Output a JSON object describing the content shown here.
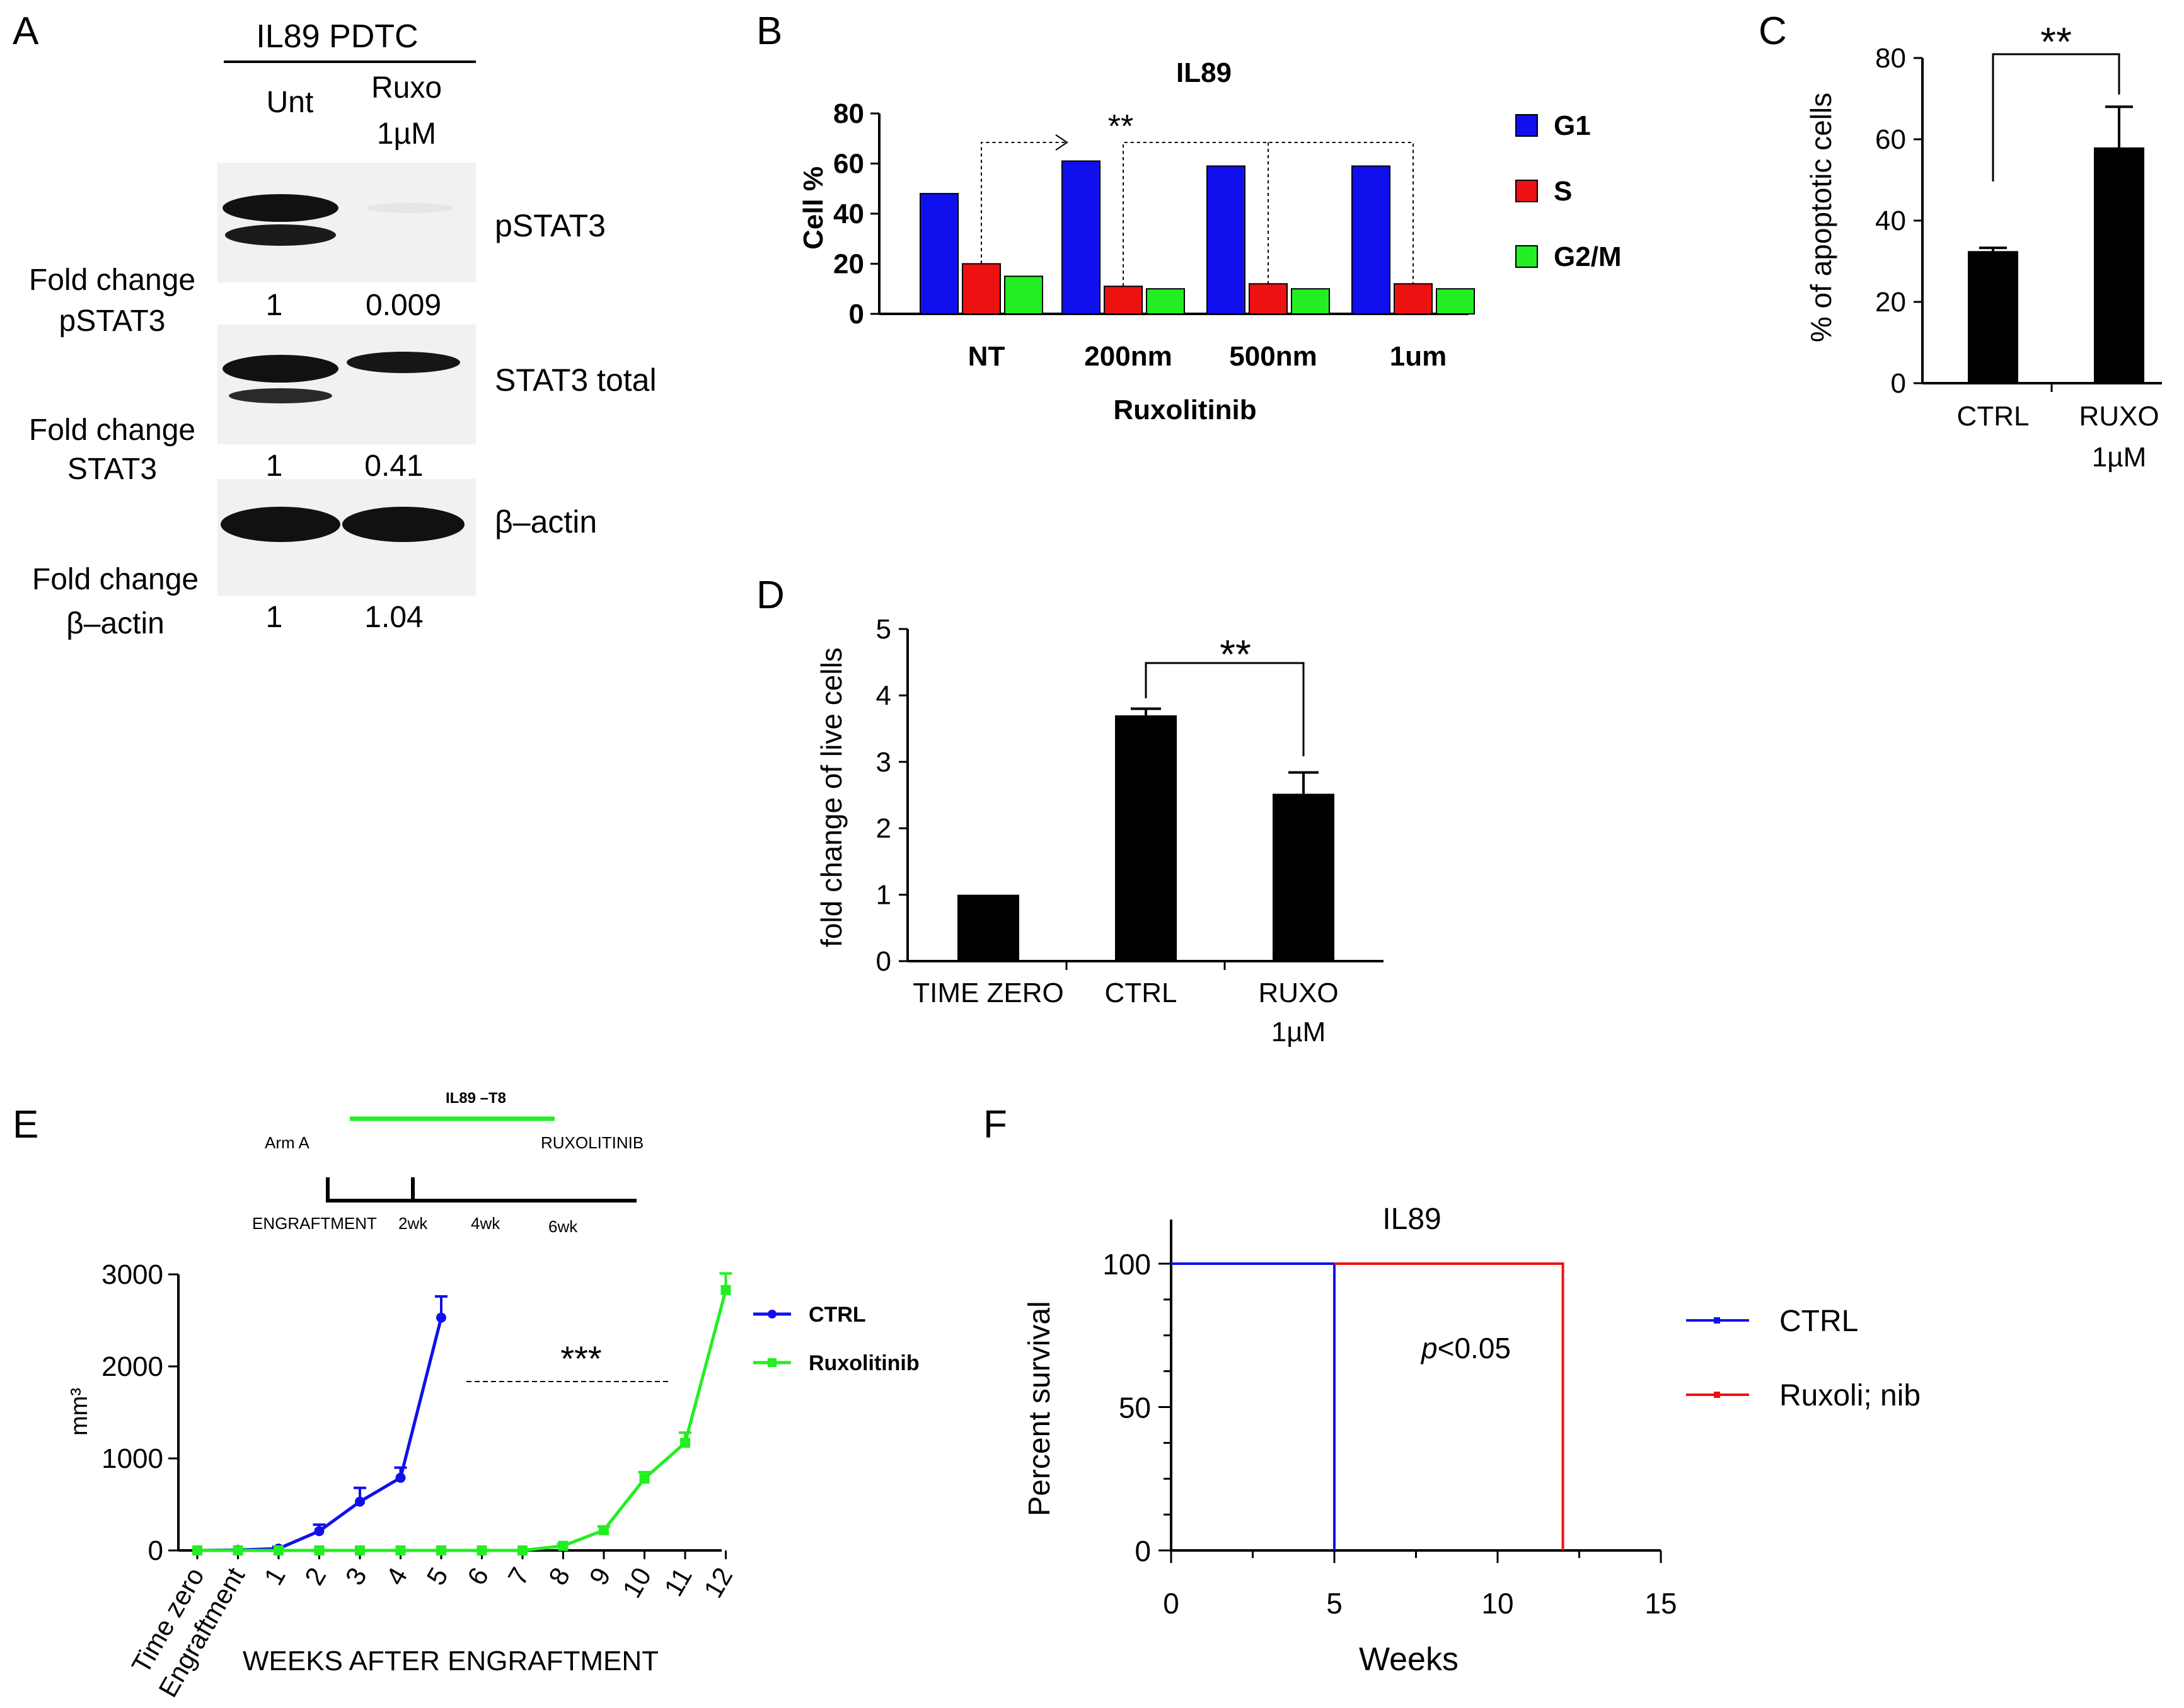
{
  "panel_labels": {
    "a": "A",
    "b": "B",
    "c": "C",
    "d": "D",
    "e": "E",
    "f": "F"
  },
  "colors": {
    "blue": "#1010ee",
    "red": "#ee1111",
    "green": "#22ee22",
    "black": "#000000",
    "blot_band": "#111111",
    "blot_bg": "#f1f1f1"
  },
  "blot": {
    "header": "IL89 PDTC",
    "col_unt": "Unt",
    "col_ruxo_1": "Ruxo",
    "col_ruxo_2": "1µM",
    "rows": [
      {
        "label": "pSTAT3",
        "fold_1": "Fold change",
        "fold_2": "pSTAT3",
        "v1": "1",
        "v2": "0.009"
      },
      {
        "label": "STAT3 total",
        "fold_1": "Fold change",
        "fold_2": "STAT3",
        "v1": "1",
        "v2": "0.41"
      },
      {
        "label": "β–actin",
        "fold_1": "Fold change",
        "fold_2": "β–actin",
        "v1": "1",
        "v2": "1.04"
      }
    ]
  },
  "chart_data": [
    {
      "id": "B",
      "type": "bar",
      "title": "IL89",
      "xlabel": "Ruxolitinib",
      "ylabel": "Cell %",
      "categories": [
        "NT",
        "200nm",
        "500nm",
        "1um"
      ],
      "series": [
        {
          "name": "G1",
          "values": [
            48,
            61,
            59,
            59
          ]
        },
        {
          "name": "S",
          "values": [
            20,
            11,
            12,
            12
          ]
        },
        {
          "name": "G2/M",
          "values": [
            15,
            10,
            10,
            10
          ]
        }
      ],
      "ylim": [
        0,
        80
      ],
      "yticks": [
        "0",
        "20",
        "40",
        "60",
        "80"
      ],
      "annotation": "**",
      "legend": "right"
    },
    {
      "id": "C",
      "type": "bar",
      "ylabel": "% of apoptotic cells",
      "categories": [
        "CTRL",
        "RUXO"
      ],
      "category_sub": [
        "",
        "1µM"
      ],
      "values": [
        32.5,
        58
      ],
      "errors": [
        0.8,
        10
      ],
      "ylim": [
        0,
        80
      ],
      "yticks": [
        "0",
        "20",
        "40",
        "60",
        "80"
      ],
      "annotation": "**"
    },
    {
      "id": "D",
      "type": "bar",
      "ylabel": "fold change of live cells",
      "categories": [
        "TIME ZERO",
        "CTRL",
        "RUXO"
      ],
      "category_sub": [
        "",
        "",
        "1µM"
      ],
      "values": [
        1,
        3.7,
        2.52
      ],
      "errors": [
        0,
        0.1,
        0.32
      ],
      "ylim": [
        0,
        5
      ],
      "yticks": [
        "0",
        "1",
        "2",
        "3",
        "4",
        "5"
      ],
      "annotation": "**"
    },
    {
      "id": "E",
      "type": "line",
      "xlabel": "WEEKS AFTER ENGRAFTMENT",
      "ylabel": "mm³",
      "x_ticklabels": [
        "Time zero",
        "Engraftment",
        "1",
        "2",
        "3",
        "4",
        "5",
        "6",
        "7",
        "8",
        "9",
        "10",
        "11",
        "12"
      ],
      "ylim": [
        0,
        3000
      ],
      "yticks": [
        "0",
        "1000",
        "2000",
        "3000"
      ],
      "series": [
        {
          "name": "CTRL",
          "x": [
            0,
            1,
            2,
            3,
            4,
            5,
            6
          ],
          "values": [
            0,
            5,
            20,
            210,
            530,
            790,
            2530
          ],
          "errors": [
            0,
            0,
            20,
            70,
            150,
            110,
            230
          ]
        },
        {
          "name": "Ruxolitinib",
          "x": [
            0,
            1,
            2,
            3,
            4,
            5,
            6,
            7,
            8,
            9,
            10,
            11,
            12,
            13
          ],
          "values": [
            0,
            0,
            0,
            0,
            0,
            0,
            0,
            0,
            0,
            50,
            220,
            780,
            1170,
            2830
          ],
          "errors": [
            0,
            0,
            0,
            0,
            0,
            0,
            0,
            0,
            0,
            20,
            40,
            70,
            110,
            180
          ]
        }
      ],
      "annotation": "***",
      "legend": "right",
      "schema": {
        "title": "IL89 –T8",
        "arm": "Arm A",
        "treatment": "RUXOLITINIB",
        "labels": [
          "ENGRAFTMENT",
          "2wk",
          "4wk",
          "6wk"
        ]
      }
    },
    {
      "id": "F",
      "type": "line",
      "title": "IL89",
      "xlabel": "Weeks",
      "ylabel": "Percent survival",
      "xlim": [
        0,
        15
      ],
      "ylim": [
        0,
        100
      ],
      "xticks": [
        "0",
        "5",
        "10",
        "15"
      ],
      "yticks": [
        "0",
        "50",
        "100"
      ],
      "series": [
        {
          "name": "CTRL",
          "x": [
            0,
            5,
            5
          ],
          "values": [
            100,
            100,
            0
          ]
        },
        {
          "name": "Ruxoli; nib",
          "x": [
            5,
            12,
            12
          ],
          "values": [
            100,
            100,
            0
          ]
        }
      ],
      "pvalue_p": "p",
      "pvalue_rest": "<0.05",
      "legend": "right"
    }
  ]
}
